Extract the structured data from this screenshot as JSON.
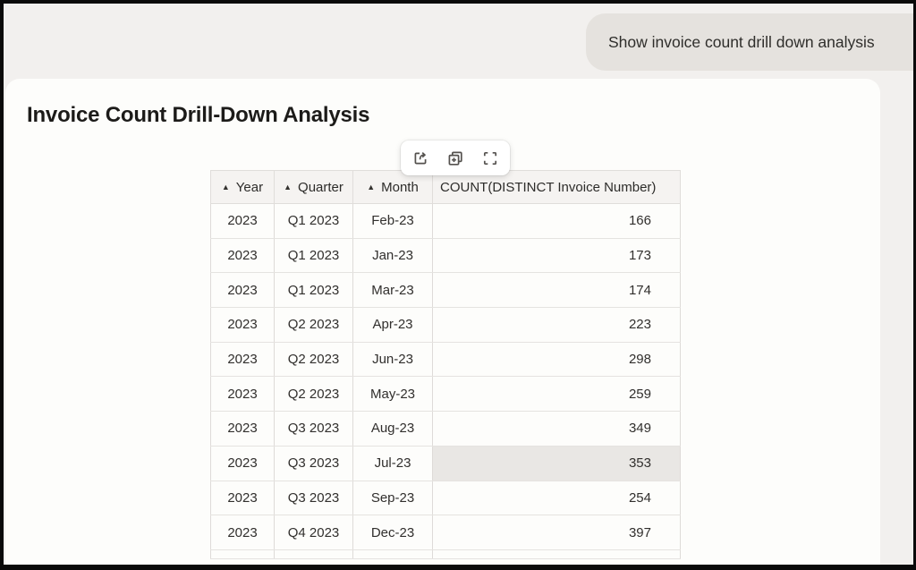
{
  "chat": {
    "message": "Show invoice count drill down analysis"
  },
  "panel": {
    "title": "Invoice Count Drill-Down Analysis"
  },
  "toolbar": {
    "buttons": [
      {
        "name": "export",
        "icon": "export-icon"
      },
      {
        "name": "duplicate",
        "icon": "duplicate-plus-icon"
      },
      {
        "name": "maximize",
        "icon": "fullscreen-icon"
      }
    ]
  },
  "table": {
    "sort_indicator": "▲",
    "columns": [
      {
        "key": "year",
        "label": "Year",
        "sorted": "ascending"
      },
      {
        "key": "quarter",
        "label": "Quarter",
        "sorted": "ascending"
      },
      {
        "key": "month",
        "label": "Month",
        "sorted": "ascending"
      },
      {
        "key": "count",
        "label": "COUNT(DISTINCT Invoice Number)",
        "sorted": "none"
      }
    ],
    "rows": [
      {
        "year": "2023",
        "quarter": "Q1 2023",
        "month": "Feb-23",
        "count": "166"
      },
      {
        "year": "2023",
        "quarter": "Q1 2023",
        "month": "Jan-23",
        "count": "173"
      },
      {
        "year": "2023",
        "quarter": "Q1 2023",
        "month": "Mar-23",
        "count": "174"
      },
      {
        "year": "2023",
        "quarter": "Q2 2023",
        "month": "Apr-23",
        "count": "223"
      },
      {
        "year": "2023",
        "quarter": "Q2 2023",
        "month": "Jun-23",
        "count": "298"
      },
      {
        "year": "2023",
        "quarter": "Q2 2023",
        "month": "May-23",
        "count": "259"
      },
      {
        "year": "2023",
        "quarter": "Q3 2023",
        "month": "Aug-23",
        "count": "349"
      },
      {
        "year": "2023",
        "quarter": "Q3 2023",
        "month": "Jul-23",
        "count": "353"
      },
      {
        "year": "2023",
        "quarter": "Q3 2023",
        "month": "Sep-23",
        "count": "254"
      },
      {
        "year": "2023",
        "quarter": "Q4 2023",
        "month": "Dec-23",
        "count": "397"
      }
    ],
    "highlight": {
      "row_index": 7,
      "column": "count"
    },
    "trailing_empty_row": true
  },
  "colors": {
    "background": "#f2f0ee",
    "bubble_bg": "#e5e2de",
    "card_bg": "#fdfdfb",
    "header_bg": "#f5f3f1",
    "highlight_bg": "#e9e7e4",
    "border": "#e0ddda"
  }
}
